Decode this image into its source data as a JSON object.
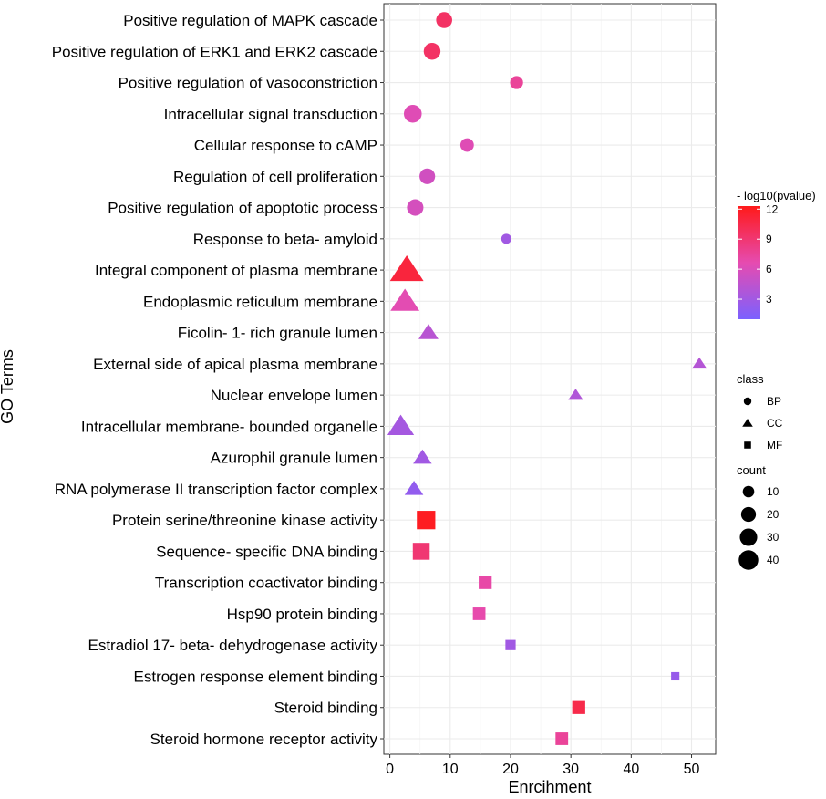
{
  "chart_data": {
    "type": "scatter",
    "title": "",
    "xlabel": "Enrcihment",
    "ylabel": "GO Terms",
    "xlim": [
      -1,
      54
    ],
    "xticks": [
      0,
      10,
      20,
      30,
      40,
      50
    ],
    "grid": true,
    "points": [
      {
        "term": "Positive regulation of MAPK cascade",
        "class": "BP",
        "enrichment": 9.0,
        "count": 16,
        "pvalue": 9.5
      },
      {
        "term": "Positive regulation of ERK1 and ERK2 cascade",
        "class": "BP",
        "enrichment": 7.0,
        "count": 18,
        "pvalue": 9.5
      },
      {
        "term": "Positive regulation of vasoconstriction",
        "class": "BP",
        "enrichment": 21.0,
        "count": 9,
        "pvalue": 7.5
      },
      {
        "term": "Intracellular signal transduction",
        "class": "BP",
        "enrichment": 3.8,
        "count": 21,
        "pvalue": 6.3
      },
      {
        "term": "Cellular response to cAMP",
        "class": "BP",
        "enrichment": 12.8,
        "count": 10,
        "pvalue": 6.3
      },
      {
        "term": "Regulation of cell proliferation",
        "class": "BP",
        "enrichment": 6.2,
        "count": 15,
        "pvalue": 5.5
      },
      {
        "term": "Positive regulation of apoptotic process",
        "class": "BP",
        "enrichment": 4.2,
        "count": 17,
        "pvalue": 5.7
      },
      {
        "term": "Response to beta- amyloid",
        "class": "BP",
        "enrichment": 19.3,
        "count": 4,
        "pvalue": 3.0
      },
      {
        "term": "Integral component of plasma membrane",
        "class": "CC",
        "enrichment": 2.8,
        "count": 46,
        "pvalue": 11.0
      },
      {
        "term": "Endoplasmic reticulum membrane",
        "class": "CC",
        "enrichment": 2.5,
        "count": 32,
        "pvalue": 6.5
      },
      {
        "term": "Ficolin- 1- rich granule lumen",
        "class": "CC",
        "enrichment": 6.4,
        "count": 12,
        "pvalue": 4.2
      },
      {
        "term": "External side of apical plasma membrane",
        "class": "CC",
        "enrichment": 51.3,
        "count": 5,
        "pvalue": 4.0
      },
      {
        "term": "Nuclear envelope lumen",
        "class": "CC",
        "enrichment": 30.8,
        "count": 5,
        "pvalue": 3.8
      },
      {
        "term": "Intracellular membrane- bounded organelle",
        "class": "CC",
        "enrichment": 1.8,
        "count": 26,
        "pvalue": 3.2
      },
      {
        "term": "Azurophil granule lumen",
        "class": "CC",
        "enrichment": 5.4,
        "count": 10,
        "pvalue": 3.0
      },
      {
        "term": "RNA polymerase II transcription factor complex",
        "class": "CC",
        "enrichment": 4.0,
        "count": 10,
        "pvalue": 2.2
      },
      {
        "term": "Protein serine/threonine kinase activity",
        "class": "MF",
        "enrichment": 6.0,
        "count": 30,
        "pvalue": 12.0
      },
      {
        "term": "Sequence- specific DNA binding",
        "class": "MF",
        "enrichment": 5.2,
        "count": 24,
        "pvalue": 9.0
      },
      {
        "term": "Transcription coactivator binding",
        "class": "MF",
        "enrichment": 15.8,
        "count": 12,
        "pvalue": 7.0
      },
      {
        "term": "Hsp90 protein binding",
        "class": "MF",
        "enrichment": 14.8,
        "count": 11,
        "pvalue": 6.8
      },
      {
        "term": "Estradiol 17- beta- dehydrogenase activity",
        "class": "MF",
        "enrichment": 20.0,
        "count": 6,
        "pvalue": 3.0
      },
      {
        "term": "Estrogen response element binding",
        "class": "MF",
        "enrichment": 47.3,
        "count": 3,
        "pvalue": 2.5
      },
      {
        "term": "Steroid binding",
        "class": "MF",
        "enrichment": 31.3,
        "count": 12,
        "pvalue": 10.5
      },
      {
        "term": "Steroid hormone receptor activity",
        "class": "MF",
        "enrichment": 28.5,
        "count": 11,
        "pvalue": 7.5
      }
    ],
    "legend": {
      "color": {
        "title": "- log10(pvalue)",
        "ticks": [
          3,
          6,
          9,
          12
        ],
        "range": [
          1,
          12.3
        ],
        "low_color": "#7b61ff",
        "mid_color": "#e64bb0",
        "high_color": "#ff1a1a"
      },
      "shape": {
        "title": "class",
        "items": [
          "BP",
          "CC",
          "MF"
        ]
      },
      "size": {
        "title": "count",
        "items": [
          10,
          20,
          30,
          40
        ]
      }
    }
  }
}
